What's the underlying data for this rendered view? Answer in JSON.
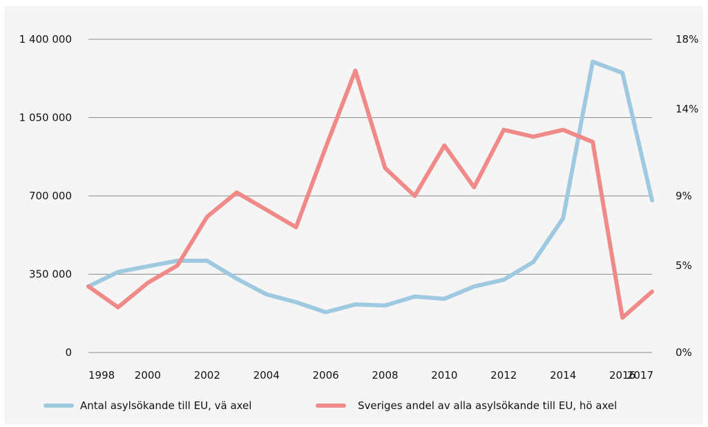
{
  "chart_data": {
    "type": "line",
    "title": "",
    "x": [
      1998,
      1999,
      2000,
      2001,
      2002,
      2003,
      2004,
      2005,
      2006,
      2007,
      2008,
      2009,
      2010,
      2011,
      2012,
      2013,
      2014,
      2015,
      2016,
      2017
    ],
    "x_tick_labels": [
      "1998",
      "2000",
      "2002",
      "2004",
      "2006",
      "2008",
      "2010",
      "2012",
      "2014",
      "2016",
      "2017"
    ],
    "y_left": {
      "ylim": [
        0,
        1400000
      ],
      "ticks": [
        0,
        350000,
        700000,
        1050000,
        1400000
      ],
      "tick_labels": [
        "0",
        "350 000",
        "700 000",
        "1 050 000",
        "1 400 000"
      ]
    },
    "y_right": {
      "ylim": [
        0,
        18
      ],
      "ticks": [
        0,
        5,
        9,
        14,
        18
      ],
      "tick_labels": [
        "0%",
        "5%",
        "9%",
        "14%",
        "18%"
      ]
    },
    "grid": true,
    "legend_position": "bottom",
    "series": [
      {
        "name": "Antal asylsökande till EU, vä axel",
        "axis": "left",
        "color": "#9ec9e0",
        "values": [
          295000,
          360000,
          385000,
          410000,
          410000,
          330000,
          260000,
          225000,
          180000,
          215000,
          210000,
          250000,
          240000,
          295000,
          325000,
          405000,
          600000,
          1300000,
          1250000,
          680000
        ]
      },
      {
        "name": "Sveriges andel av alla asylsökande till EU, hö axel",
        "axis": "right",
        "color": "#f08a88",
        "values": [
          3.8,
          2.6,
          4.0,
          5.0,
          7.8,
          9.2,
          8.2,
          7.2,
          11.8,
          16.2,
          10.6,
          9.0,
          11.9,
          9.5,
          12.8,
          12.4,
          12.8,
          12.1,
          2.0,
          3.5
        ]
      }
    ]
  }
}
